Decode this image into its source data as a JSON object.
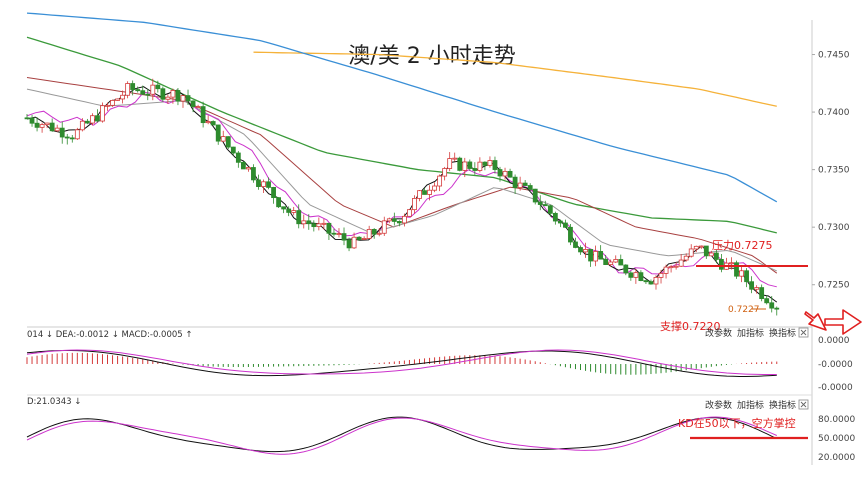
{
  "chart_data": {
    "type": "candlestick",
    "title": "澳/美 2 小时走势",
    "price_axis": {
      "ticks": [
        "0.7450",
        "0.7400",
        "0.7350",
        "0.7300",
        "0.7250"
      ],
      "ylim": [
        0.7215,
        0.748
      ]
    },
    "moving_averages": [
      {
        "color": "#f5b23a",
        "points": [
          [
            0.29,
            0.7452
          ],
          [
            0.45,
            0.745
          ],
          [
            0.6,
            0.7443
          ],
          [
            0.75,
            0.743
          ],
          [
            0.86,
            0.742
          ],
          [
            0.96,
            0.7405
          ]
        ]
      },
      {
        "color": "#3a8fd6",
        "points": [
          [
            0.0,
            0.7486
          ],
          [
            0.15,
            0.7478
          ],
          [
            0.3,
            0.7462
          ],
          [
            0.45,
            0.7432
          ],
          [
            0.6,
            0.74
          ],
          [
            0.75,
            0.737
          ],
          [
            0.9,
            0.7345
          ],
          [
            0.96,
            0.7322
          ]
        ]
      },
      {
        "color": "#3b9a3b",
        "points": [
          [
            0.0,
            0.7465
          ],
          [
            0.12,
            0.744
          ],
          [
            0.25,
            0.74
          ],
          [
            0.38,
            0.7365
          ],
          [
            0.5,
            0.735
          ],
          [
            0.6,
            0.7343
          ],
          [
            0.7,
            0.732
          ],
          [
            0.8,
            0.7308
          ],
          [
            0.9,
            0.7305
          ],
          [
            0.96,
            0.7295
          ]
        ]
      },
      {
        "color": "#a84040",
        "points": [
          [
            0.0,
            0.743
          ],
          [
            0.1,
            0.742
          ],
          [
            0.2,
            0.741
          ],
          [
            0.3,
            0.738
          ],
          [
            0.4,
            0.732
          ],
          [
            0.47,
            0.73
          ],
          [
            0.55,
            0.732
          ],
          [
            0.62,
            0.7335
          ],
          [
            0.7,
            0.7325
          ],
          [
            0.78,
            0.73
          ],
          [
            0.86,
            0.729
          ],
          [
            0.93,
            0.7275
          ],
          [
            0.96,
            0.726
          ]
        ]
      },
      {
        "color": "#999999",
        "points": [
          [
            0.0,
            0.742
          ],
          [
            0.1,
            0.7405
          ],
          [
            0.2,
            0.741
          ],
          [
            0.28,
            0.738
          ],
          [
            0.36,
            0.732
          ],
          [
            0.44,
            0.7295
          ],
          [
            0.52,
            0.731
          ],
          [
            0.6,
            0.7335
          ],
          [
            0.67,
            0.732
          ],
          [
            0.74,
            0.7285
          ],
          [
            0.82,
            0.7275
          ],
          [
            0.9,
            0.728
          ],
          [
            0.96,
            0.7262
          ]
        ]
      },
      {
        "color": "#cc33cc",
        "points": [
          [
            0.0,
            0.74
          ],
          [
            0.08,
            0.739
          ],
          [
            0.15,
            0.7415
          ],
          [
            0.22,
            0.7405
          ],
          [
            0.28,
            0.737
          ],
          [
            0.34,
            0.732
          ],
          [
            0.42,
            0.729
          ],
          [
            0.5,
            0.7315
          ],
          [
            0.57,
            0.735
          ],
          [
            0.63,
            0.734
          ],
          [
            0.69,
            0.73
          ],
          [
            0.76,
            0.7262
          ],
          [
            0.82,
            0.7262
          ],
          [
            0.88,
            0.7276
          ],
          [
            0.93,
            0.7262
          ],
          [
            0.96,
            0.7245
          ]
        ]
      },
      {
        "color": "#111111",
        "points": [
          [
            0.0,
            0.7395
          ],
          [
            0.06,
            0.738
          ],
          [
            0.13,
            0.742
          ],
          [
            0.2,
            0.7415
          ],
          [
            0.27,
            0.736
          ],
          [
            0.34,
            0.731
          ],
          [
            0.42,
            0.7285
          ],
          [
            0.48,
            0.731
          ],
          [
            0.54,
            0.7355
          ],
          [
            0.6,
            0.7352
          ],
          [
            0.66,
            0.732
          ],
          [
            0.72,
            0.7275
          ],
          [
            0.8,
            0.7255
          ],
          [
            0.86,
            0.7282
          ],
          [
            0.91,
            0.726
          ],
          [
            0.96,
            0.7232
          ]
        ]
      }
    ],
    "macd_panel": {
      "label": "014 ↓ DEA:-0.0012 ↓ MACD:-0.0005 ↑",
      "ticks": [
        "0.0000",
        "-0.0000",
        "-0.0000"
      ]
    },
    "kd_panel": {
      "label": "D:21.0343 ↓",
      "ticks": [
        "80.0000",
        "50.0000",
        "20.0000"
      ],
      "reference_level": 50
    },
    "toolbar_items": [
      "改参数",
      "加指标",
      "换指标"
    ],
    "annotations": {
      "resistance": {
        "label": "压力0.7275",
        "value": 0.7275
      },
      "support": {
        "label": "支撑0.7220",
        "value": 0.722
      },
      "low_marker": "0.7227",
      "kd_note": "KD在50以下，空方掌控"
    }
  }
}
